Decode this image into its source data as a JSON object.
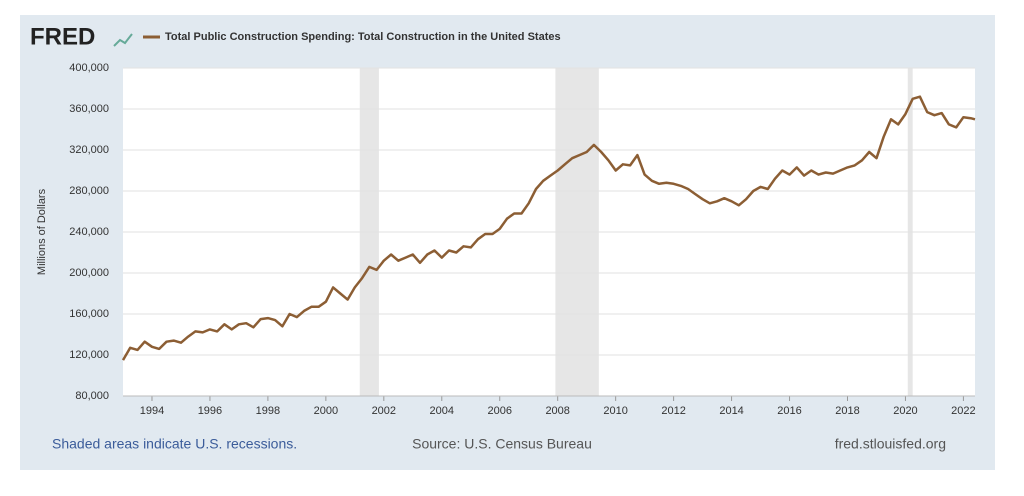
{
  "chart_data": {
    "type": "line",
    "logo": "FRED",
    "y_label": "Millions of Dollars",
    "footer_left": "Shaded areas indicate U.S. recessions.",
    "footer_center": "Source: U.S. Census Bureau",
    "footer_right": "fred.stlouisfed.org",
    "x": [
      1993.0,
      1993.25,
      1993.5,
      1993.75,
      1994.0,
      1994.25,
      1994.5,
      1994.75,
      1995.0,
      1995.25,
      1995.5,
      1995.75,
      1996.0,
      1996.25,
      1996.5,
      1996.75,
      1997.0,
      1997.25,
      1997.5,
      1997.75,
      1998.0,
      1998.25,
      1998.5,
      1998.75,
      1999.0,
      1999.25,
      1999.5,
      1999.75,
      2000.0,
      2000.25,
      2000.5,
      2000.75,
      2001.0,
      2001.25,
      2001.5,
      2001.75,
      2002.0,
      2002.25,
      2002.5,
      2002.75,
      2003.0,
      2003.25,
      2003.5,
      2003.75,
      2004.0,
      2004.25,
      2004.5,
      2004.75,
      2005.0,
      2005.25,
      2005.5,
      2005.75,
      2006.0,
      2006.25,
      2006.5,
      2006.75,
      2007.0,
      2007.25,
      2007.5,
      2007.75,
      2008.0,
      2008.25,
      2008.5,
      2008.75,
      2009.0,
      2009.25,
      2009.5,
      2009.75,
      2010.0,
      2010.25,
      2010.5,
      2010.75,
      2011.0,
      2011.25,
      2011.5,
      2011.75,
      2012.0,
      2012.25,
      2012.5,
      2012.75,
      2013.0,
      2013.25,
      2013.5,
      2013.75,
      2014.0,
      2014.25,
      2014.5,
      2014.75,
      2015.0,
      2015.25,
      2015.5,
      2015.75,
      2016.0,
      2016.25,
      2016.5,
      2016.75,
      2017.0,
      2017.25,
      2017.5,
      2017.75,
      2018.0,
      2018.25,
      2018.5,
      2018.75,
      2019.0,
      2019.25,
      2019.5,
      2019.75,
      2020.0,
      2020.25,
      2020.5,
      2020.75,
      2021.0,
      2021.25,
      2021.5,
      2021.75,
      2022.0,
      2022.25,
      2022.4
    ],
    "series": [
      {
        "name": "Total Public Construction Spending: Total Construction in the United States",
        "color": "#8c5e34",
        "values": [
          115000,
          127000,
          125000,
          133000,
          128000,
          126000,
          133000,
          134000,
          132000,
          138000,
          143000,
          142000,
          145000,
          143000,
          150000,
          145000,
          150000,
          151000,
          147000,
          155000,
          156000,
          154000,
          148000,
          160000,
          157000,
          163000,
          167000,
          167000,
          172000,
          186000,
          180000,
          174000,
          186000,
          195000,
          206000,
          203000,
          212000,
          218000,
          212000,
          215000,
          218000,
          210000,
          218000,
          222000,
          215000,
          222000,
          220000,
          226000,
          225000,
          233000,
          238000,
          238000,
          243000,
          253000,
          258000,
          258000,
          268000,
          282000,
          290000,
          295000,
          300000,
          306000,
          312000,
          315000,
          318000,
          325000,
          318000,
          310000,
          300000,
          306000,
          305000,
          315000,
          296000,
          290000,
          287000,
          288000,
          287000,
          285000,
          282000,
          277000,
          272000,
          268000,
          270000,
          273000,
          270000,
          266000,
          272000,
          280000,
          284000,
          282000,
          292000,
          300000,
          296000,
          303000,
          295000,
          300000,
          296000,
          298000,
          297000,
          300000,
          303000,
          305000,
          310000,
          318000,
          312000,
          333000,
          350000,
          345000,
          355000,
          370000,
          372000,
          357000,
          354000,
          356000,
          345000,
          342000,
          352000,
          351000,
          350000
        ]
      }
    ],
    "recessions": [
      [
        2001.17,
        2001.83
      ],
      [
        2007.92,
        2009.42
      ],
      [
        2020.08,
        2020.25
      ]
    ],
    "xlim": [
      1993.0,
      2022.4
    ],
    "xticks": [
      1994,
      1996,
      1998,
      2000,
      2002,
      2004,
      2006,
      2008,
      2010,
      2012,
      2014,
      2016,
      2018,
      2020,
      2022
    ],
    "ylim": [
      80000,
      400000
    ],
    "yticks": [
      {
        "value": 80000,
        "label": "80,000"
      },
      {
        "value": 120000,
        "label": "120,000"
      },
      {
        "value": 160000,
        "label": "160,000"
      },
      {
        "value": 200000,
        "label": "200,000"
      },
      {
        "value": 240000,
        "label": "240,000"
      },
      {
        "value": 280000,
        "label": "280,000"
      },
      {
        "value": 320000,
        "label": "320,000"
      },
      {
        "value": 360000,
        "label": "360,000"
      },
      {
        "value": 400000,
        "label": "400,000"
      }
    ],
    "grid": true
  }
}
